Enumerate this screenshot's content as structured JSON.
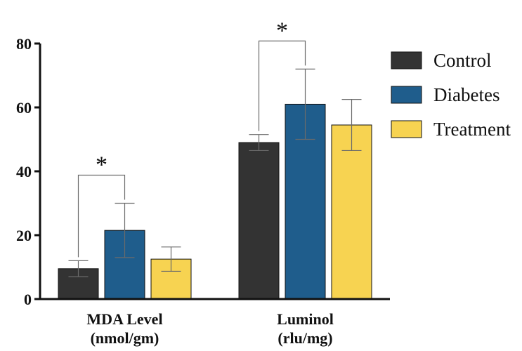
{
  "chart_data": {
    "type": "bar",
    "categories": [
      [
        "MDA Level",
        "(nmol/gm)"
      ],
      [
        "Luminol",
        "(rlu/mg)"
      ]
    ],
    "series": [
      {
        "name": "Control",
        "values": [
          9.5,
          49.0
        ],
        "errors": [
          2.5,
          2.5
        ],
        "color": "#333333"
      },
      {
        "name": "Diabetes",
        "values": [
          21.5,
          61.0
        ],
        "errors": [
          8.5,
          11.0
        ],
        "color": "#1f5d8c"
      },
      {
        "name": "Treatment",
        "values": [
          12.5,
          54.5
        ],
        "errors": [
          3.8,
          8.0
        ],
        "color": "#f7d351"
      }
    ],
    "yticks": [
      0,
      20,
      40,
      60,
      80
    ],
    "ylim": [
      0,
      80
    ],
    "legend_position": "right",
    "significance": [
      {
        "category_index": 0,
        "between": [
          "Control",
          "Diabetes"
        ],
        "label": "*"
      },
      {
        "category_index": 1,
        "between": [
          "Control",
          "Diabetes"
        ],
        "label": "*"
      }
    ]
  }
}
